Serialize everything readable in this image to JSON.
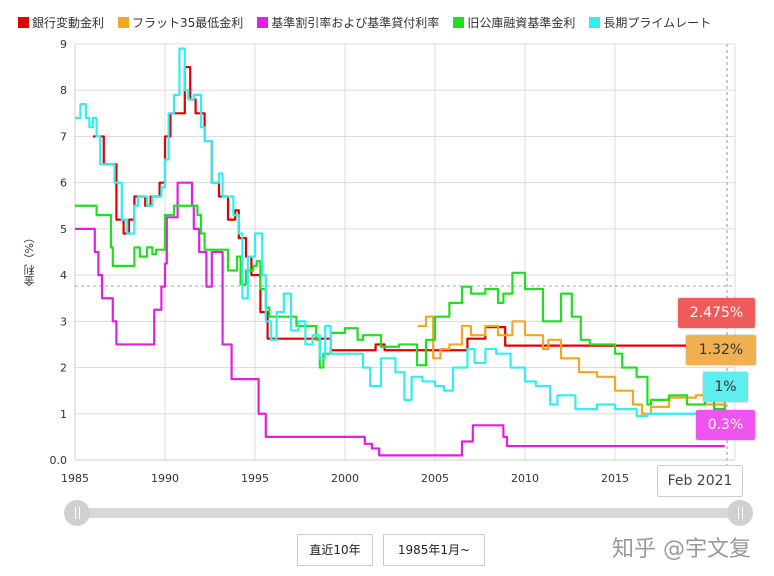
{
  "chart_data": {
    "type": "line",
    "step": true,
    "xlabel": "",
    "ylabel": "金利（%）",
    "xlim": [
      1985,
      2021.5
    ],
    "ylim": [
      0,
      9
    ],
    "x_ticks": [
      "1985",
      "1990",
      "1995",
      "2000",
      "2005",
      "2010",
      "2015"
    ],
    "y_ticks": [
      "0.0",
      "1",
      "2",
      "3",
      "4",
      "5",
      "6",
      "7",
      "8",
      "9"
    ],
    "grid": true,
    "legend_position": "top",
    "hover_label": "Feb 2021",
    "series": [
      {
        "name": "銀行変動金利",
        "color": "#e00000",
        "last_label": "2.475%",
        "label_color": "#ef5b5b",
        "points": [
          [
            1986,
            7.0
          ],
          [
            1986.6,
            6.4
          ],
          [
            1987.3,
            5.2
          ],
          [
            1987.7,
            4.9
          ],
          [
            1988,
            5.2
          ],
          [
            1988.3,
            5.7
          ],
          [
            1988.9,
            5.5
          ],
          [
            1989.2,
            5.7
          ],
          [
            1989.7,
            6.0
          ],
          [
            1990,
            7.0
          ],
          [
            1990.3,
            7.5
          ],
          [
            1991.1,
            8.5
          ],
          [
            1991.4,
            7.8
          ],
          [
            1991.7,
            7.5
          ],
          [
            1992.2,
            6.9
          ],
          [
            1992.6,
            6.0
          ],
          [
            1993,
            5.7
          ],
          [
            1993.5,
            5.2
          ],
          [
            1993.9,
            5.4
          ],
          [
            1994.1,
            4.8
          ],
          [
            1994.5,
            4.4
          ],
          [
            1994.8,
            4.0
          ],
          [
            1995.3,
            3.2
          ],
          [
            1995.7,
            2.625
          ],
          [
            1999.2,
            2.375
          ],
          [
            2001.7,
            2.5
          ],
          [
            2002.2,
            2.375
          ],
          [
            2006.8,
            2.625
          ],
          [
            2007.8,
            2.875
          ],
          [
            2008.9,
            2.475
          ],
          [
            2021.1,
            2.475
          ]
        ]
      },
      {
        "name": "フラット35最低金利",
        "color": "#f5a623",
        "last_label": "1.32%",
        "label_color": "#f0b050",
        "points": [
          [
            2004.05,
            2.9
          ],
          [
            2004.5,
            3.1
          ],
          [
            2004.9,
            2.2
          ],
          [
            2005.3,
            2.4
          ],
          [
            2005.8,
            2.5
          ],
          [
            2006.5,
            2.9
          ],
          [
            2007,
            2.7
          ],
          [
            2007.8,
            2.9
          ],
          [
            2008.5,
            2.7
          ],
          [
            2009.3,
            3.0
          ],
          [
            2010,
            2.7
          ],
          [
            2011,
            2.4
          ],
          [
            2011.3,
            2.6
          ],
          [
            2012,
            2.2
          ],
          [
            2013,
            1.9
          ],
          [
            2014,
            1.8
          ],
          [
            2015,
            1.5
          ],
          [
            2016,
            1.2
          ],
          [
            2016.5,
            1.0
          ],
          [
            2017,
            1.15
          ],
          [
            2018,
            1.35
          ],
          [
            2019.5,
            1.4
          ],
          [
            2020,
            1.2
          ],
          [
            2021.1,
            1.32
          ]
        ]
      },
      {
        "name": "基準割引率および基準貸付利率",
        "color": "#e020e0",
        "last_label": "0.3%",
        "label_color": "#ee55ee",
        "points": [
          [
            1985,
            5.0
          ],
          [
            1986.1,
            4.5
          ],
          [
            1986.3,
            4.0
          ],
          [
            1986.5,
            3.5
          ],
          [
            1987.1,
            3.0
          ],
          [
            1987.3,
            2.5
          ],
          [
            1989.4,
            3.25
          ],
          [
            1989.8,
            3.75
          ],
          [
            1990,
            4.25
          ],
          [
            1990.1,
            5.25
          ],
          [
            1990.7,
            6.0
          ],
          [
            1991.5,
            5.5
          ],
          [
            1991.6,
            5.0
          ],
          [
            1991.9,
            4.5
          ],
          [
            1992.3,
            3.75
          ],
          [
            1992.6,
            4.5
          ],
          [
            1993.2,
            2.5
          ],
          [
            1993.7,
            1.75
          ],
          [
            1995.2,
            1.0
          ],
          [
            1995.6,
            0.5
          ],
          [
            2001.1,
            0.35
          ],
          [
            2001.5,
            0.25
          ],
          [
            2001.9,
            0.1
          ],
          [
            2006.5,
            0.4
          ],
          [
            2007.1,
            0.75
          ],
          [
            2008.8,
            0.5
          ],
          [
            2009,
            0.3
          ],
          [
            2021.1,
            0.3
          ]
        ]
      },
      {
        "name": "旧公庫融資基準金利",
        "color": "#22dd22",
        "last_label": "",
        "label_color": "#22dd22",
        "points": [
          [
            1985,
            5.5
          ],
          [
            1986.2,
            5.3
          ],
          [
            1987,
            4.6
          ],
          [
            1987.1,
            4.2
          ],
          [
            1988.3,
            4.6
          ],
          [
            1988.6,
            4.4
          ],
          [
            1989,
            4.6
          ],
          [
            1989.3,
            4.45
          ],
          [
            1989.5,
            4.55
          ],
          [
            1990,
            5.3
          ],
          [
            1990.5,
            5.5
          ],
          [
            1991.8,
            5.3
          ],
          [
            1992,
            4.9
          ],
          [
            1992.2,
            4.55
          ],
          [
            1993.5,
            4.1
          ],
          [
            1994,
            4.4
          ],
          [
            1994.2,
            3.8
          ],
          [
            1994.5,
            4.1
          ],
          [
            1994.9,
            4.2
          ],
          [
            1995.1,
            4.3
          ],
          [
            1995.3,
            3.7
          ],
          [
            1995.6,
            3.3
          ],
          [
            1995.8,
            3.1
          ],
          [
            1997.3,
            2.9
          ],
          [
            1998.4,
            2.6
          ],
          [
            1998.6,
            2.0
          ],
          [
            1998.8,
            2.3
          ],
          [
            1999.2,
            2.75
          ],
          [
            2000,
            2.85
          ],
          [
            2000.7,
            2.6
          ],
          [
            2001,
            2.7
          ],
          [
            2002,
            2.45
          ],
          [
            2003,
            2.5
          ],
          [
            2004,
            2.05
          ],
          [
            2004.5,
            2.6
          ],
          [
            2005,
            3.1
          ],
          [
            2005.8,
            3.4
          ],
          [
            2006.5,
            3.75
          ],
          [
            2007,
            3.6
          ],
          [
            2007.8,
            3.7
          ],
          [
            2008.5,
            3.4
          ],
          [
            2008.8,
            3.6
          ],
          [
            2009.3,
            4.05
          ],
          [
            2010,
            3.7
          ],
          [
            2011,
            3.0
          ],
          [
            2012,
            3.6
          ],
          [
            2012.6,
            3.1
          ],
          [
            2013.1,
            2.6
          ],
          [
            2013.6,
            2.5
          ],
          [
            2015,
            2.3
          ],
          [
            2015.4,
            2.0
          ],
          [
            2016.2,
            1.8
          ],
          [
            2016.8,
            1.2
          ],
          [
            2017,
            1.3
          ],
          [
            2018,
            1.4
          ],
          [
            2019,
            1.2
          ],
          [
            2020,
            1.3
          ],
          [
            2020.5,
            1.1
          ],
          [
            2021.1,
            1.2
          ]
        ]
      },
      {
        "name": "長期プライムレート",
        "color": "#33eeee",
        "last_label": "1%",
        "label_color": "#5eeeee",
        "points": [
          [
            1985,
            7.4
          ],
          [
            1985.3,
            7.7
          ],
          [
            1985.6,
            7.4
          ],
          [
            1985.8,
            7.2
          ],
          [
            1986,
            7.4
          ],
          [
            1986.2,
            7.0
          ],
          [
            1986.4,
            6.4
          ],
          [
            1987.2,
            6.0
          ],
          [
            1987.6,
            5.2
          ],
          [
            1987.9,
            4.9
          ],
          [
            1988.3,
            5.5
          ],
          [
            1988.5,
            5.7
          ],
          [
            1989,
            5.5
          ],
          [
            1989.3,
            5.7
          ],
          [
            1989.8,
            5.9
          ],
          [
            1990,
            6.5
          ],
          [
            1990.2,
            7.5
          ],
          [
            1990.5,
            7.9
          ],
          [
            1990.8,
            8.9
          ],
          [
            1991.1,
            8.0
          ],
          [
            1991.3,
            7.8
          ],
          [
            1991.6,
            7.9
          ],
          [
            1992,
            7.2
          ],
          [
            1992.2,
            6.9
          ],
          [
            1992.6,
            6.0
          ],
          [
            1993,
            6.2
          ],
          [
            1993.2,
            5.7
          ],
          [
            1993.8,
            5.3
          ],
          [
            1994.1,
            4.9
          ],
          [
            1994.3,
            3.5
          ],
          [
            1994.6,
            4.4
          ],
          [
            1995,
            4.9
          ],
          [
            1995.4,
            4.0
          ],
          [
            1995.6,
            3.0
          ],
          [
            1995.9,
            2.6
          ],
          [
            1996.2,
            3.2
          ],
          [
            1996.6,
            3.6
          ],
          [
            1997,
            2.8
          ],
          [
            1997.4,
            3.0
          ],
          [
            1997.8,
            2.5
          ],
          [
            1998.2,
            2.7
          ],
          [
            1998.6,
            2.2
          ],
          [
            1998.9,
            2.9
          ],
          [
            1999.2,
            2.3
          ],
          [
            2001,
            2.0
          ],
          [
            2001.4,
            1.6
          ],
          [
            2002,
            2.2
          ],
          [
            2002.8,
            1.9
          ],
          [
            2003.3,
            1.3
          ],
          [
            2003.7,
            1.8
          ],
          [
            2004.3,
            1.7
          ],
          [
            2005,
            1.6
          ],
          [
            2005.5,
            1.5
          ],
          [
            2006,
            2.0
          ],
          [
            2006.8,
            2.4
          ],
          [
            2007.2,
            2.1
          ],
          [
            2007.8,
            2.4
          ],
          [
            2008.4,
            2.3
          ],
          [
            2009.2,
            2.0
          ],
          [
            2010,
            1.7
          ],
          [
            2010.6,
            1.6
          ],
          [
            2011.4,
            1.2
          ],
          [
            2011.8,
            1.4
          ],
          [
            2012.8,
            1.1
          ],
          [
            2014,
            1.2
          ],
          [
            2015,
            1.1
          ],
          [
            2016.2,
            0.95
          ],
          [
            2016.8,
            1.0
          ],
          [
            2021.1,
            1.0
          ]
        ]
      }
    ]
  },
  "controls": {
    "button_10y": "直近10年",
    "button_from1985": "1985年1月~"
  },
  "watermark": "知乎 @宇文复"
}
